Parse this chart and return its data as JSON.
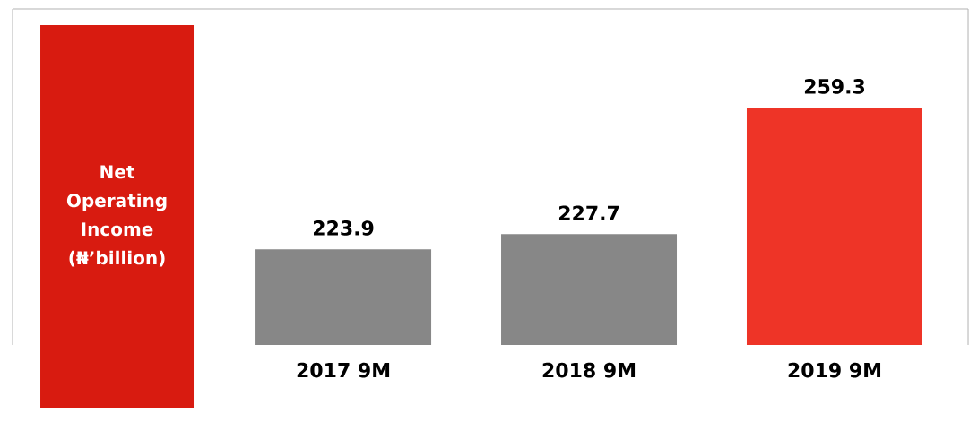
{
  "chart_data": {
    "type": "bar",
    "ylabel": "Net Operating Income (₦’billion)",
    "categories": [
      "2017 9M",
      "2018 9M",
      "2019 9M"
    ],
    "values": [
      223.9,
      227.7,
      259.3
    ],
    "colors": [
      "#878787",
      "#878787",
      "#ee3427"
    ],
    "ylim": [
      200,
      284
    ],
    "tick_labels": "x",
    "data_labels": true
  }
}
